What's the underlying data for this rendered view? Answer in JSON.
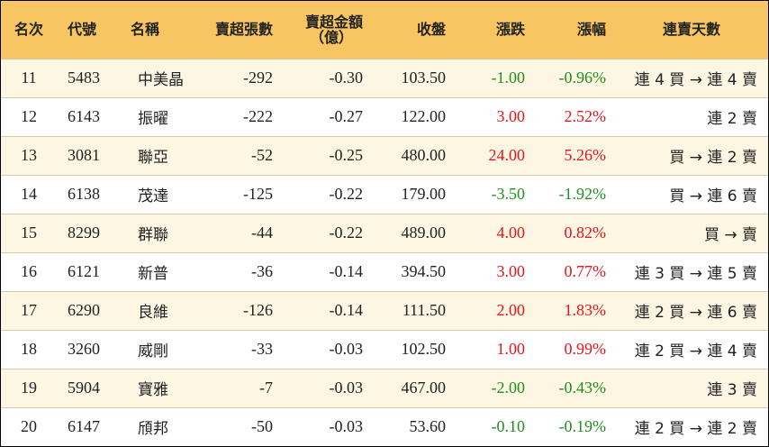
{
  "table": {
    "headers": {
      "rank": "名次",
      "code": "代號",
      "name": "名稱",
      "sell_lots": "賣超張數",
      "sell_amount_line1": "賣超金額",
      "sell_amount_line2": "（億）",
      "close": "收盤",
      "change": "漲跌",
      "pct": "漲幅",
      "days": "連賣天數"
    },
    "rows": [
      {
        "rank": "11",
        "code": "5483",
        "name": "中美晶",
        "sell_lots": "-292",
        "sell_amount": "-0.30",
        "close": "103.50",
        "change": "-1.00",
        "pct": "-0.96%",
        "days": "連 4 買 → 連 4 賣",
        "trend": "down"
      },
      {
        "rank": "12",
        "code": "6143",
        "name": "振曜",
        "sell_lots": "-222",
        "sell_amount": "-0.27",
        "close": "122.00",
        "change": "3.00",
        "pct": "2.52%",
        "days": "連 2 賣",
        "trend": "up"
      },
      {
        "rank": "13",
        "code": "3081",
        "name": "聯亞",
        "sell_lots": "-52",
        "sell_amount": "-0.25",
        "close": "480.00",
        "change": "24.00",
        "pct": "5.26%",
        "days": "買 → 連 2 賣",
        "trend": "up"
      },
      {
        "rank": "14",
        "code": "6138",
        "name": "茂達",
        "sell_lots": "-125",
        "sell_amount": "-0.22",
        "close": "179.00",
        "change": "-3.50",
        "pct": "-1.92%",
        "days": "買 → 連 6 賣",
        "trend": "down"
      },
      {
        "rank": "15",
        "code": "8299",
        "name": "群聯",
        "sell_lots": "-44",
        "sell_amount": "-0.22",
        "close": "489.00",
        "change": "4.00",
        "pct": "0.82%",
        "days": "買 → 賣",
        "trend": "up"
      },
      {
        "rank": "16",
        "code": "6121",
        "name": "新普",
        "sell_lots": "-36",
        "sell_amount": "-0.14",
        "close": "394.50",
        "change": "3.00",
        "pct": "0.77%",
        "days": "連 3 買 → 連 5 賣",
        "trend": "up"
      },
      {
        "rank": "17",
        "code": "6290",
        "name": "良維",
        "sell_lots": "-126",
        "sell_amount": "-0.14",
        "close": "111.50",
        "change": "2.00",
        "pct": "1.83%",
        "days": "連 2 買 → 連 6 賣",
        "trend": "up"
      },
      {
        "rank": "18",
        "code": "3260",
        "name": "威剛",
        "sell_lots": "-33",
        "sell_amount": "-0.03",
        "close": "102.50",
        "change": "1.00",
        "pct": "0.99%",
        "days": "連 2 買 → 連 4 賣",
        "trend": "up"
      },
      {
        "rank": "19",
        "code": "5904",
        "name": "寶雅",
        "sell_lots": "-7",
        "sell_amount": "-0.03",
        "close": "467.00",
        "change": "-2.00",
        "pct": "-0.43%",
        "days": "連 3 賣",
        "trend": "down"
      },
      {
        "rank": "20",
        "code": "6147",
        "name": "頎邦",
        "sell_lots": "-50",
        "sell_amount": "-0.03",
        "close": "53.60",
        "change": "-0.10",
        "pct": "-0.19%",
        "days": "連 2 買 → 連 2 賣",
        "trend": "down"
      }
    ]
  },
  "colors": {
    "header_bg": "#f7c562",
    "row_odd_bg": "#fdf6e3",
    "row_even_bg": "#ffffff",
    "up": "#e8141b",
    "down": "#1f8f1f"
  }
}
